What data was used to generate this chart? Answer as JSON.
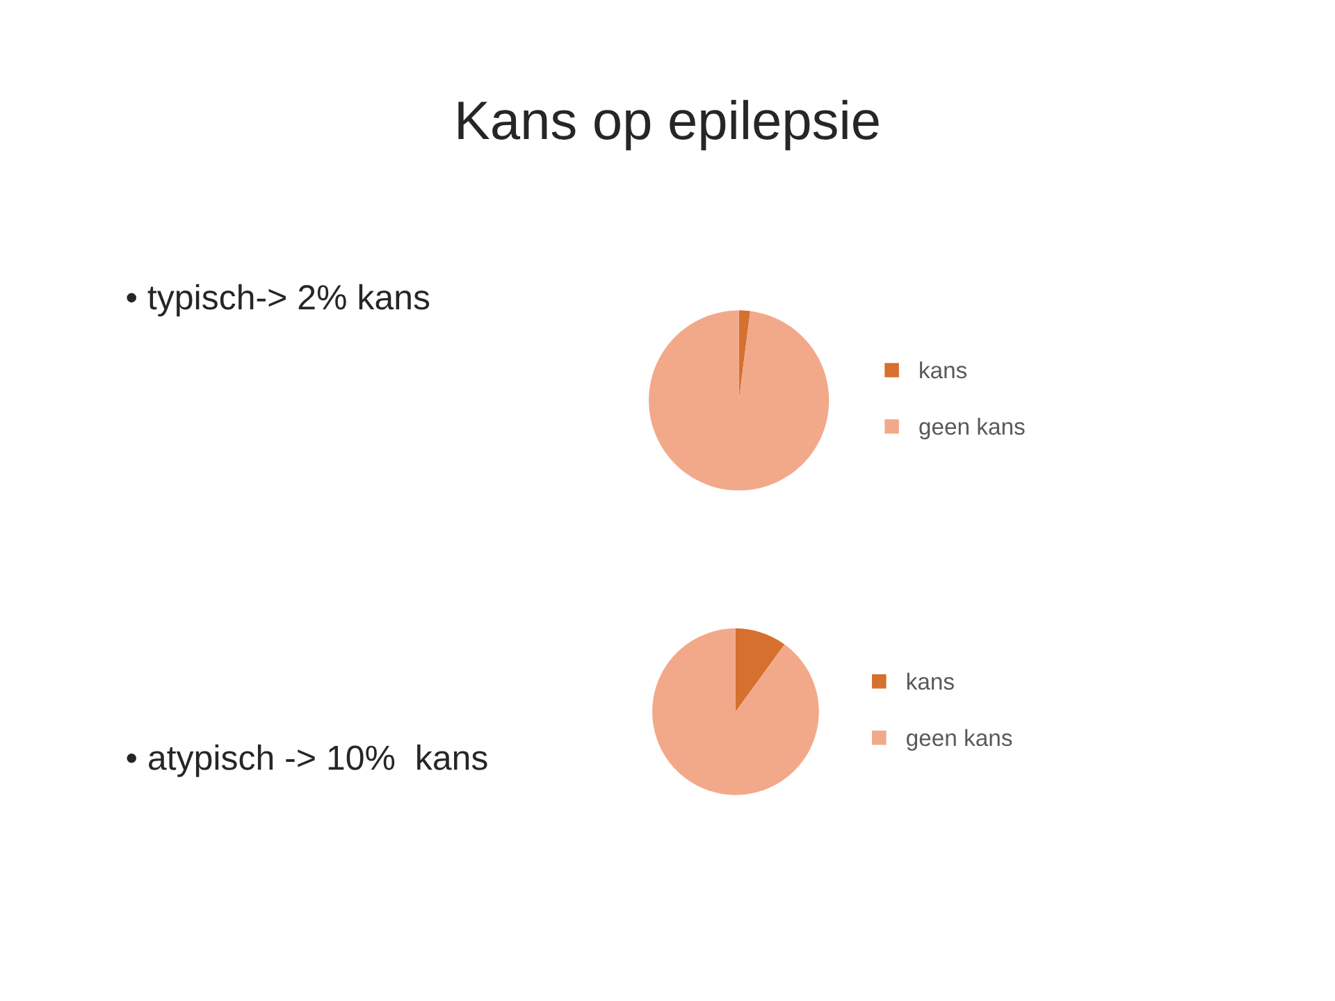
{
  "chart_data": [
    {
      "type": "pie",
      "title": "Kans op epilepsie",
      "categories": [
        "kans",
        "geen kans"
      ],
      "values": [
        2,
        98
      ],
      "colors": [
        "#d5702e",
        "#f2a98a"
      ],
      "legend": "right",
      "annotations": [
        "• typisch-> 2% kans"
      ]
    },
    {
      "type": "pie",
      "categories": [
        "kans",
        "geen kans"
      ],
      "values": [
        10,
        90
      ],
      "colors": [
        "#d5702e",
        "#f2a98a"
      ],
      "legend": "right",
      "annotations": [
        "• atypisch -> 10%  kans"
      ]
    }
  ]
}
